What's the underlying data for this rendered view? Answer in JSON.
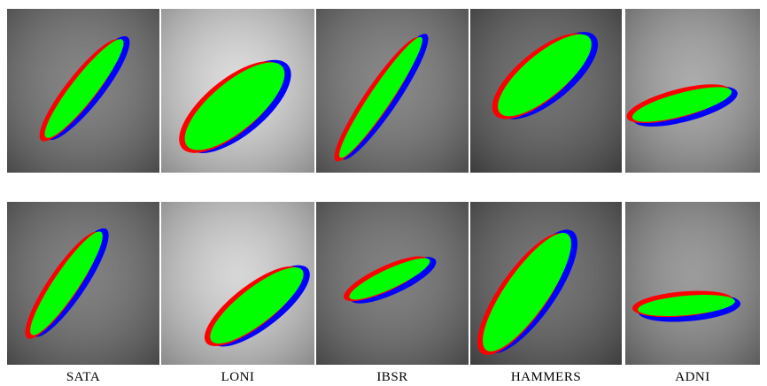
{
  "labels": [
    "SATA",
    "LONI",
    "IBSR",
    "HAMMERS",
    "ADNI"
  ]
}
